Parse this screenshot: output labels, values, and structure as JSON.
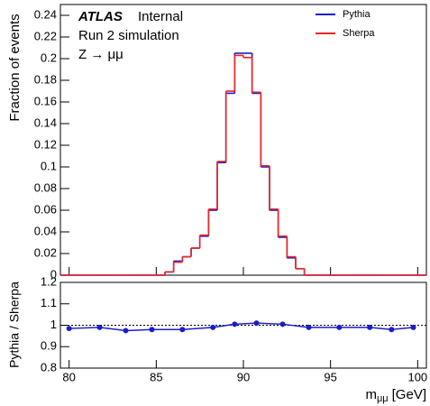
{
  "chart_data": [
    {
      "type": "histogram",
      "experiment": "ATLAS",
      "status": "Internal",
      "lines": [
        "Run 2 simulation",
        "Z → μμ"
      ],
      "y_label": "Fraction of events",
      "bins": [
        79.5,
        80,
        80.5,
        81,
        81.5,
        82,
        82.5,
        83,
        83.5,
        84,
        84.5,
        85,
        85.5,
        86,
        86.5,
        87,
        87.5,
        88,
        88.5,
        89,
        89.5,
        90,
        90.5,
        91,
        91.5,
        92,
        92.5,
        93,
        93.5,
        94,
        94.5,
        95,
        95.5,
        96,
        96.5,
        97,
        97.5,
        98,
        98.5,
        99,
        99.5,
        100,
        100.5
      ],
      "series": [
        {
          "name": "Pythia",
          "color": "#1c1cc8",
          "values": [
            0,
            0,
            0,
            0,
            0,
            0,
            0,
            0,
            0,
            0,
            0,
            0,
            0.003,
            0.013,
            0.017,
            0.025,
            0.036,
            0.06,
            0.104,
            0.168,
            0.205,
            0.205,
            0.168,
            0.1,
            0.06,
            0.035,
            0.016,
            0.006,
            0,
            0,
            0,
            0,
            0,
            0,
            0,
            0,
            0,
            0,
            0,
            0,
            0,
            0
          ]
        },
        {
          "name": "Sherpa",
          "color": "#e8262a",
          "values": [
            0,
            0,
            0,
            0,
            0,
            0,
            0,
            0,
            0,
            0,
            0,
            0,
            0.003,
            0.012,
            0.017,
            0.025,
            0.037,
            0.061,
            0.105,
            0.17,
            0.203,
            0.201,
            0.169,
            0.101,
            0.061,
            0.036,
            0.017,
            0.006,
            0,
            0,
            0,
            0,
            0,
            0,
            0,
            0,
            0,
            0,
            0,
            0,
            0,
            0
          ]
        }
      ],
      "legend": "top-right",
      "xlim": [
        79.5,
        100.5
      ],
      "xticks": [
        80,
        85,
        90,
        95,
        100
      ],
      "ylim": [
        0,
        0.25
      ],
      "yticks": [
        0,
        0.02,
        0.04,
        0.06,
        0.08,
        0.1,
        0.12,
        0.14,
        0.16,
        0.18,
        0.2,
        0.22,
        0.24
      ]
    },
    {
      "type": "scatter",
      "y_label": "Pythia / Sherpa",
      "x_label": {
        "main": "m",
        "sub": "μμ",
        "unit": "[GeV]"
      },
      "color": "#1c1cc8",
      "x": [
        80,
        81.75,
        83.25,
        84.75,
        86.5,
        88.25,
        89.5,
        90.75,
        92.25,
        93.75,
        95.5,
        97.25,
        98.5,
        99.75
      ],
      "values": [
        0.985,
        0.99,
        0.975,
        0.98,
        0.98,
        0.99,
        1.005,
        1.01,
        1.005,
        0.99,
        0.99,
        0.99,
        0.98,
        0.99
      ],
      "yerr": [
        0.006,
        0.006,
        0.005,
        0.004,
        0.003,
        0.003,
        0.003,
        0.003,
        0.003,
        0.004,
        0.004,
        0.005,
        0.006,
        0.008
      ],
      "ref_line": 1,
      "xlim": [
        79.5,
        100.5
      ],
      "xticks": [
        80,
        85,
        90,
        95,
        100
      ],
      "ylim": [
        0.8,
        1.2
      ],
      "yticks": [
        0.8,
        0.9,
        1,
        1.1,
        1.2
      ]
    }
  ]
}
